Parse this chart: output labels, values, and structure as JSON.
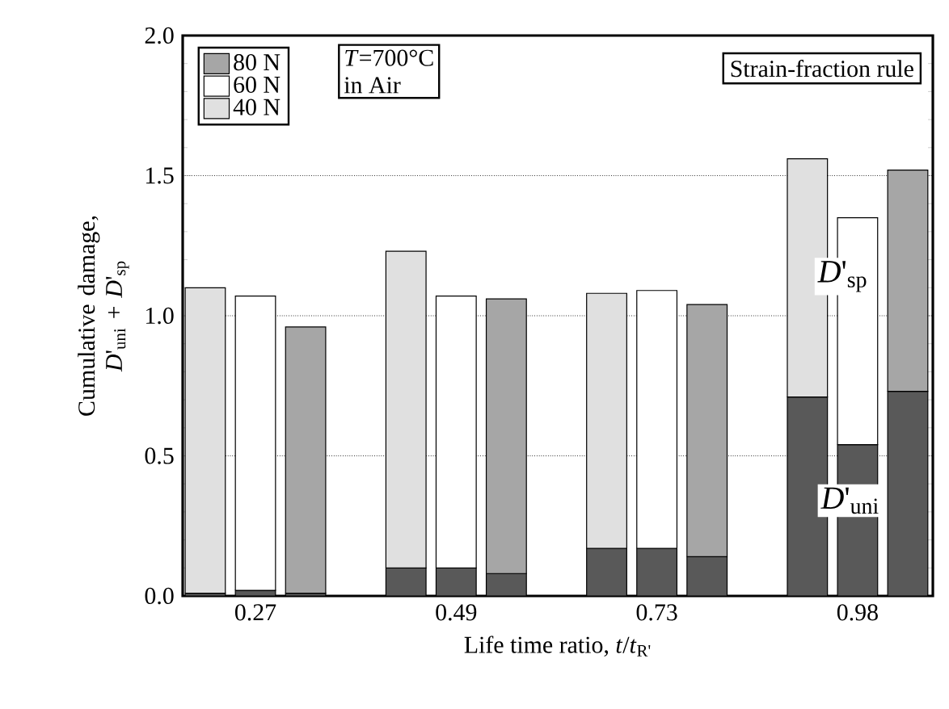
{
  "chart_data": {
    "type": "bar",
    "stacked": true,
    "xlabel": "Life time ratio, *t*/*t*$_{R'}$",
    "ylabel": "Cumulative damage, *D*'$_{uni}$ + *D*'$_{sp}$",
    "categories": [
      null,
      "0.27",
      null,
      null,
      "0.49",
      null,
      null,
      "0.73",
      null,
      null,
      "0.98",
      null
    ],
    "series": [
      {
        "color": "#595959",
        "values": [
          0.01,
          0.02,
          0.01,
          0.1,
          0.1,
          0.08,
          0.17,
          0.17,
          0.14,
          0.71,
          0.54,
          0.73
        ]
      },
      {
        "name": "40 N",
        "color": "#e0e0e0",
        "values": [
          1.09,
          null,
          null,
          1.13,
          null,
          null,
          0.91,
          null,
          null,
          0.85,
          null,
          null
        ]
      },
      {
        "name": "60 N",
        "color": "#ffffff",
        "values": [
          null,
          1.05,
          null,
          null,
          0.97,
          null,
          null,
          0.92,
          null,
          null,
          0.81,
          null
        ]
      },
      {
        "name": "80 N",
        "color": "#a6a6a6",
        "values": [
          null,
          null,
          0.95,
          null,
          null,
          0.98,
          null,
          null,
          0.9,
          null,
          null,
          0.79
        ]
      }
    ],
    "ylim": [
      0,
      2.0
    ],
    "yticks": [
      {
        "value": 0,
        "label": "0.0"
      },
      0.5,
      {
        "value": 1,
        "label": "1.0"
      },
      1.5,
      {
        "value": 2,
        "label": "2.0"
      }
    ],
    "grid": "y",
    "legend": "top left",
    "annotations": [
      "*T*=700°C",
      "in Air",
      "Strain-fraction rule",
      "*D*'$_{sp}$",
      "*D*'$_{uni}$"
    ]
  }
}
